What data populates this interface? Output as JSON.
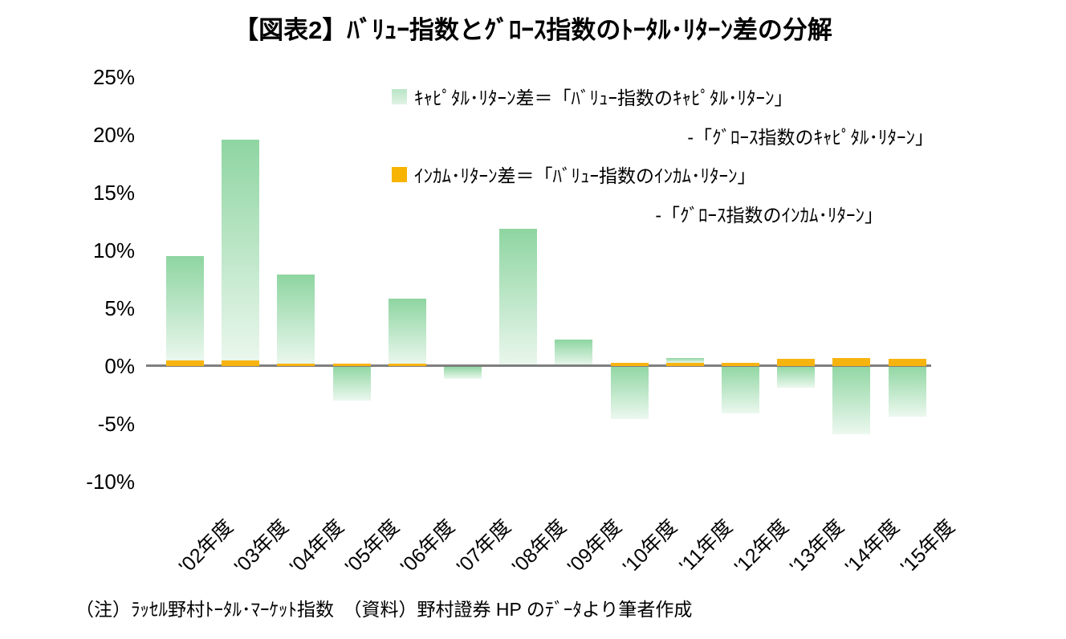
{
  "title": "【図表2】ﾊﾞﾘｭｰ指数とｸﾞﾛｰｽ指数のﾄｰﾀﾙ･ﾘﾀｰﾝ差の分解",
  "legend": {
    "capital": {
      "line1": "ｷｬﾋﾟﾀﾙ･ﾘﾀｰﾝ差＝「ﾊﾞﾘｭｰ指数のｷｬﾋﾟﾀﾙ･ﾘﾀｰﾝ」",
      "line2": "-「ｸﾞﾛｰｽ指数のｷｬﾋﾟﾀﾙ･ﾘﾀｰﾝ」",
      "swatch_color_top": "#b9e5c6",
      "swatch_color_bottom": "#e1f2e5"
    },
    "income": {
      "line1": "ｲﾝｶﾑ･ﾘﾀｰﾝ差＝「ﾊﾞﾘｭｰ指数のｲﾝｶﾑ･ﾘﾀｰﾝ」",
      "line2": "-「ｸﾞﾛｰｽ指数のｲﾝｶﾑ･ﾘﾀｰﾝ」",
      "swatch_color": "#f8b403"
    }
  },
  "footnote": "（注）ﾗｯｾﾙ野村ﾄｰﾀﾙ･ﾏｰｹｯﾄ指数　（資料）野村證券 HP のﾃﾞｰﾀより筆者作成",
  "chart_data": {
    "type": "bar",
    "stacked": true,
    "title": "【図表2】ﾊﾞﾘｭｰ指数とｸﾞﾛｰｽ指数のﾄｰﾀﾙ･ﾘﾀｰﾝ差の分解",
    "categories": [
      "'02年度",
      "'03年度",
      "'04年度",
      "'05年度",
      "'06年度",
      "'07年度",
      "'08年度",
      "'09年度",
      "'10年度",
      "'11年度",
      "'12年度",
      "'13年度",
      "'14年度",
      "'15年度"
    ],
    "series": [
      {
        "name": "ｷｬﾋﾟﾀﾙ･ﾘﾀｰﾝ差",
        "color_top": "#8ed5a1",
        "color_bottom": "#eaf7ed",
        "values": [
          9.0,
          19.1,
          7.7,
          -3.0,
          5.6,
          -1.1,
          11.9,
          2.3,
          -4.6,
          0.4,
          -4.1,
          -1.9,
          -5.9,
          -4.4
        ]
      },
      {
        "name": "ｲﾝｶﾑ･ﾘﾀｰﾝ差",
        "color": "#f7b40f",
        "values": [
          0.5,
          0.5,
          0.2,
          0.2,
          0.2,
          0.0,
          0.0,
          0.0,
          0.3,
          0.3,
          0.3,
          0.6,
          0.7,
          0.6
        ]
      }
    ],
    "y_ticks": [
      "25%",
      "20%",
      "15%",
      "10%",
      "5%",
      "0%",
      "-5%",
      "-10%"
    ],
    "ylim": [
      -10,
      25
    ],
    "xlabel": "",
    "ylabel": "",
    "grid": false,
    "x_tick_rotation": 45,
    "legend_position": "top-right",
    "axis_line_color": "#7f7f7f",
    "background": "#ffffff"
  }
}
